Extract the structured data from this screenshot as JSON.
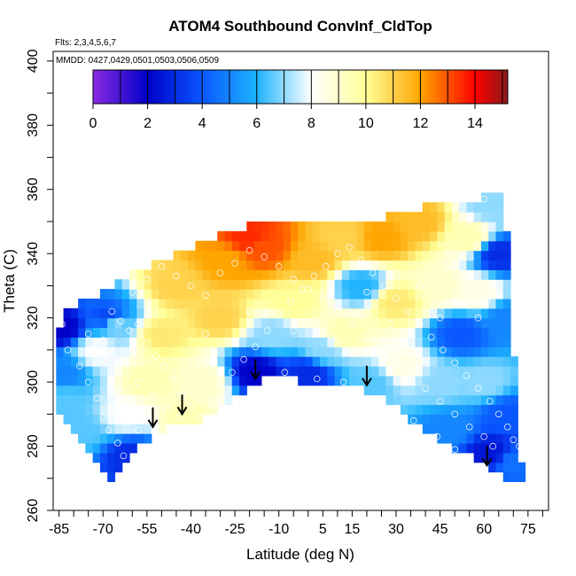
{
  "chart_data": {
    "type": "heatmap",
    "title": "ATOM4 Southbound ConvInf_CldTop",
    "flights_note": "Flts: 2,3,4,5,6,7",
    "dates_note": "MMDD: 0427,0429,0501,0503,0506,0509",
    "xlabel": "Latitude (deg N)",
    "ylabel": "Theta (C)",
    "xlim": [
      -87,
      82
    ],
    "ylim": [
      260,
      403
    ],
    "x_ticks": [
      "-85",
      "-70",
      "-55",
      "-40",
      "-25",
      "-10",
      "5",
      "15",
      "30",
      "45",
      "60",
      "75"
    ],
    "x_tick_values": [
      -85,
      -70,
      -55,
      -40,
      -25,
      -10,
      5,
      15,
      30,
      45,
      60,
      75
    ],
    "y_ticks": [
      "260",
      "280",
      "300",
      "320",
      "340",
      "360",
      "380",
      "400"
    ],
    "y_tick_values": [
      260,
      280,
      300,
      320,
      340,
      360,
      380,
      400
    ],
    "grid": false,
    "colorbar": {
      "range": [
        0,
        15.2
      ],
      "ticks": [
        "0",
        "2",
        "4",
        "6",
        "8",
        "10",
        "12",
        "14"
      ],
      "tick_values": [
        0,
        2,
        4,
        6,
        8,
        10,
        12,
        14
      ],
      "colors": [
        "#8a2be2",
        "#0000c8",
        "#0a58ff",
        "#1eb4ff",
        "#ffffff",
        "#ffff99",
        "#ffa500",
        "#ff0000",
        "#8b1a1a"
      ],
      "stops": [
        0,
        2,
        4,
        6,
        8,
        10,
        12,
        14,
        15.2
      ]
    },
    "envelope": {
      "top": [
        [
          -86,
          316
        ],
        [
          -82,
          322
        ],
        [
          -75,
          326
        ],
        [
          -68,
          329
        ],
        [
          -62,
          333
        ],
        [
          -55,
          336
        ],
        [
          -48,
          339
        ],
        [
          -40,
          342
        ],
        [
          -32,
          345
        ],
        [
          -22,
          348
        ],
        [
          -10,
          351
        ],
        [
          5,
          350
        ],
        [
          20,
          350
        ],
        [
          35,
          354
        ],
        [
          48,
          356
        ],
        [
          57,
          356
        ],
        [
          63,
          359
        ],
        [
          66,
          358
        ],
        [
          68,
          345
        ],
        [
          69,
          320
        ],
        [
          71,
          300
        ],
        [
          72,
          288
        ],
        [
          73,
          270
        ]
      ],
      "bottom": [
        [
          -86,
          293
        ],
        [
          -80,
          284
        ],
        [
          -75,
          278
        ],
        [
          -70,
          272
        ],
        [
          -66,
          269
        ],
        [
          -62,
          276
        ],
        [
          -57,
          280
        ],
        [
          -50,
          285
        ],
        [
          -44,
          287
        ],
        [
          -38,
          288
        ],
        [
          -32,
          291
        ],
        [
          -26,
          295
        ],
        [
          -20,
          298
        ],
        [
          -15,
          302
        ],
        [
          -8,
          301
        ],
        [
          0,
          300
        ],
        [
          8,
          299
        ],
        [
          15,
          298
        ],
        [
          22,
          297
        ],
        [
          30,
          292
        ],
        [
          40,
          285
        ],
        [
          48,
          280
        ],
        [
          55,
          277
        ],
        [
          62,
          273
        ],
        [
          66,
          270
        ],
        [
          68,
          268
        ],
        [
          73,
          270
        ]
      ]
    },
    "anchors": [
      {
        "lat": -84,
        "theta": 317,
        "value": 2.0
      },
      {
        "lat": -84,
        "theta": 303,
        "value": 5.0
      },
      {
        "lat": -83,
        "theta": 294,
        "value": 6.5
      },
      {
        "lat": -78,
        "theta": 285,
        "value": 6.5
      },
      {
        "lat": -72,
        "theta": 310,
        "value": 8.0
      },
      {
        "lat": -68,
        "theta": 320,
        "value": 3.5
      },
      {
        "lat": -66,
        "theta": 318,
        "value": 7.0
      },
      {
        "lat": -60,
        "theta": 277,
        "value": 3.0
      },
      {
        "lat": -62,
        "theta": 290,
        "value": 8.0
      },
      {
        "lat": -55,
        "theta": 300,
        "value": 9.5
      },
      {
        "lat": -50,
        "theta": 315,
        "value": 10.5
      },
      {
        "lat": -45,
        "theta": 330,
        "value": 11.0
      },
      {
        "lat": -42,
        "theta": 288,
        "value": 9.5
      },
      {
        "lat": -35,
        "theta": 300,
        "value": 9.0
      },
      {
        "lat": -30,
        "theta": 320,
        "value": 11.0
      },
      {
        "lat": -28,
        "theta": 338,
        "value": 12.0
      },
      {
        "lat": -20,
        "theta": 345,
        "value": 13.5
      },
      {
        "lat": -15,
        "theta": 342,
        "value": 13.0
      },
      {
        "lat": -18,
        "theta": 303,
        "value": 2.0
      },
      {
        "lat": -12,
        "theta": 315,
        "value": 7.0
      },
      {
        "lat": -5,
        "theta": 325,
        "value": 10.0
      },
      {
        "lat": 0,
        "theta": 303,
        "value": 3.0
      },
      {
        "lat": 5,
        "theta": 310,
        "value": 7.0
      },
      {
        "lat": 2,
        "theta": 338,
        "value": 11.5
      },
      {
        "lat": 12,
        "theta": 345,
        "value": 11.0
      },
      {
        "lat": 12,
        "theta": 315,
        "value": 9.5
      },
      {
        "lat": 18,
        "theta": 330,
        "value": 6.0
      },
      {
        "lat": 22,
        "theta": 300,
        "value": 6.5
      },
      {
        "lat": 25,
        "theta": 345,
        "value": 12.0
      },
      {
        "lat": 30,
        "theta": 325,
        "value": 10.5
      },
      {
        "lat": 32,
        "theta": 305,
        "value": 8.5
      },
      {
        "lat": 38,
        "theta": 350,
        "value": 11.5
      },
      {
        "lat": 45,
        "theta": 330,
        "value": 9.0
      },
      {
        "lat": 45,
        "theta": 300,
        "value": 7.0
      },
      {
        "lat": 48,
        "theta": 285,
        "value": 5.0
      },
      {
        "lat": 52,
        "theta": 315,
        "value": 4.0
      },
      {
        "lat": 55,
        "theta": 345,
        "value": 9.5
      },
      {
        "lat": 58,
        "theta": 328,
        "value": 8.5
      },
      {
        "lat": 60,
        "theta": 300,
        "value": 7.0
      },
      {
        "lat": 62,
        "theta": 355,
        "value": 7.0
      },
      {
        "lat": 65,
        "theta": 340,
        "value": 3.0
      },
      {
        "lat": 68,
        "theta": 320,
        "value": 5.0
      },
      {
        "lat": 68,
        "theta": 290,
        "value": 4.0
      },
      {
        "lat": 62,
        "theta": 278,
        "value": 2.5
      },
      {
        "lat": 70,
        "theta": 275,
        "value": 4.5
      }
    ],
    "markers": [
      [
        -84,
        318
      ],
      [
        -82,
        310
      ],
      [
        -78,
        305
      ],
      [
        -75,
        300
      ],
      [
        -72,
        295
      ],
      [
        -70,
        289
      ],
      [
        -68,
        285
      ],
      [
        -65,
        281
      ],
      [
        -63,
        277
      ],
      [
        -61,
        273
      ],
      [
        -67,
        322
      ],
      [
        -64,
        319
      ],
      [
        -61,
        316
      ],
      [
        -58,
        318
      ],
      [
        -55,
        312
      ],
      [
        -52,
        308
      ],
      [
        -49,
        305
      ],
      [
        -46,
        301
      ],
      [
        -43,
        296
      ],
      [
        -40,
        292
      ],
      [
        -37,
        289
      ],
      [
        -33,
        293
      ],
      [
        -30,
        299
      ],
      [
        -26,
        303
      ],
      [
        -22,
        307
      ],
      [
        -18,
        311
      ],
      [
        -14,
        316
      ],
      [
        -10,
        321
      ],
      [
        -6,
        325
      ],
      [
        -2,
        329
      ],
      [
        2,
        333
      ],
      [
        6,
        336
      ],
      [
        10,
        340
      ],
      [
        14,
        342
      ],
      [
        18,
        338
      ],
      [
        22,
        334
      ],
      [
        26,
        330
      ],
      [
        30,
        326
      ],
      [
        34,
        322
      ],
      [
        38,
        318
      ],
      [
        42,
        314
      ],
      [
        46,
        310
      ],
      [
        50,
        306
      ],
      [
        54,
        302
      ],
      [
        58,
        298
      ],
      [
        62,
        294
      ],
      [
        65,
        290
      ],
      [
        68,
        286
      ],
      [
        70,
        282
      ],
      [
        72,
        280
      ],
      [
        -60,
        328
      ],
      [
        -55,
        332
      ],
      [
        -50,
        336
      ],
      [
        -45,
        333
      ],
      [
        -40,
        330
      ],
      [
        -35,
        327
      ],
      [
        -30,
        334
      ],
      [
        -25,
        337
      ],
      [
        -20,
        341
      ],
      [
        -15,
        339
      ],
      [
        -10,
        336
      ],
      [
        -5,
        332
      ],
      [
        0,
        329
      ],
      [
        5,
        326
      ],
      [
        10,
        322
      ],
      [
        15,
        318
      ],
      [
        20,
        314
      ],
      [
        25,
        310
      ],
      [
        30,
        306
      ],
      [
        35,
        302
      ],
      [
        40,
        298
      ],
      [
        45,
        294
      ],
      [
        50,
        290
      ],
      [
        55,
        286
      ],
      [
        60,
        283
      ],
      [
        63,
        280
      ],
      [
        58,
        320
      ],
      [
        61,
        325
      ],
      [
        64,
        330
      ],
      [
        50,
        325
      ],
      [
        45,
        320
      ],
      [
        -75,
        315
      ],
      [
        -70,
        313
      ],
      [
        -65,
        305
      ],
      [
        -58,
        300
      ],
      [
        -53,
        296
      ],
      [
        -48,
        292
      ],
      [
        -44,
        289
      ],
      [
        -58,
        285
      ],
      [
        -55,
        288
      ],
      [
        -50,
        282
      ],
      [
        -8,
        303
      ],
      [
        3,
        301
      ],
      [
        12,
        300
      ],
      [
        25,
        293
      ],
      [
        36,
        288
      ],
      [
        44,
        283
      ],
      [
        50,
        279
      ],
      [
        -35,
        315
      ],
      [
        -20,
        322
      ],
      [
        -5,
        316
      ],
      [
        8,
        314
      ],
      [
        20,
        328
      ],
      [
        28,
        318
      ],
      [
        38,
        330
      ],
      [
        48,
        340
      ],
      [
        55,
        350
      ],
      [
        60,
        357
      ]
    ],
    "arrows": [
      {
        "lat": -53,
        "theta": 286
      },
      {
        "lat": -43,
        "theta": 290
      },
      {
        "lat": -18,
        "theta": 301
      },
      {
        "lat": 20,
        "theta": 299
      },
      {
        "lat": 61,
        "theta": 274
      }
    ]
  }
}
